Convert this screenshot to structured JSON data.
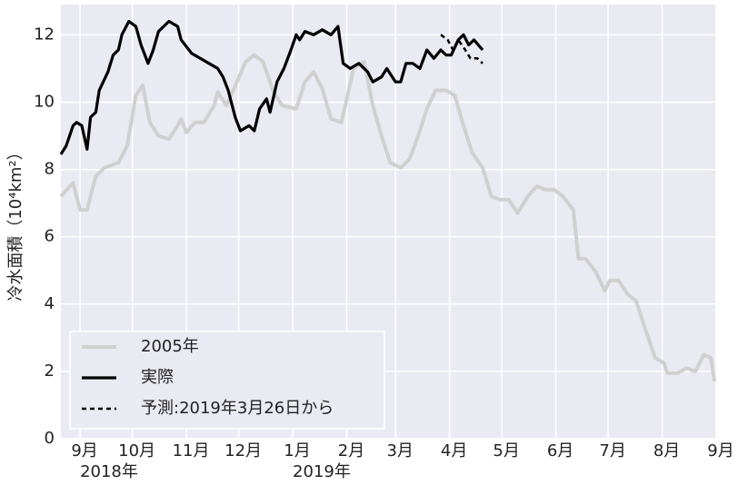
{
  "chart_data": {
    "type": "line",
    "y_label": "冷水面積（10⁴km²）",
    "xlim": [
      -11,
      365
    ],
    "xticks": [
      {
        "value": 0,
        "label": "9月"
      },
      {
        "value": 30,
        "label": "10月"
      },
      {
        "value": 61,
        "label": "11月"
      },
      {
        "value": 91,
        "label": "12月"
      },
      {
        "value": 122,
        "label": "1月"
      },
      {
        "value": 153,
        "label": "2月"
      },
      {
        "value": 181,
        "label": "3月"
      },
      {
        "value": 212,
        "label": "4月"
      },
      {
        "value": 242,
        "label": "5月"
      },
      {
        "value": 273,
        "label": "6月"
      },
      {
        "value": 303,
        "label": "7月"
      },
      {
        "value": 334,
        "label": "8月"
      },
      {
        "value": 365,
        "label": "9月"
      }
    ],
    "year_labels": [
      {
        "value": 0,
        "label": "2018年"
      },
      {
        "value": 122,
        "label": "2019年"
      }
    ],
    "ylim": [
      0,
      12.9
    ],
    "yticks": [
      0,
      2,
      4,
      6,
      8,
      10,
      12
    ],
    "grid": true,
    "legend": "lower left",
    "series": [
      {
        "name": "2005年",
        "color": "#d0d0d0",
        "style": "solid",
        "x": [
          -11,
          -4,
          0,
          4,
          9,
          14,
          22,
          27,
          32,
          36,
          40,
          45,
          51,
          56,
          58,
          61,
          66,
          71,
          77,
          79,
          84,
          90,
          95,
          100,
          105,
          111,
          116,
          124,
          129,
          134,
          139,
          144,
          150,
          157,
          163,
          168,
          173,
          178,
          184,
          189,
          194,
          199,
          204,
          210,
          215,
          220,
          225,
          231,
          236,
          241,
          246,
          251,
          257,
          262,
          267,
          272,
          277,
          283,
          286,
          290,
          296,
          301,
          304,
          309,
          314,
          319,
          324,
          330,
          335,
          337,
          343,
          348,
          353,
          358,
          362,
          364
        ],
        "values": [
          7.2,
          7.6,
          6.8,
          6.8,
          7.8,
          8.05,
          8.2,
          8.7,
          10.2,
          10.5,
          9.4,
          9.0,
          8.9,
          9.3,
          9.5,
          9.1,
          9.4,
          9.4,
          9.9,
          10.3,
          9.9,
          10.6,
          11.2,
          11.4,
          11.2,
          10.3,
          9.9,
          9.8,
          10.6,
          10.9,
          10.4,
          9.5,
          9.4,
          11.0,
          11.2,
          9.9,
          9.0,
          8.2,
          8.05,
          8.3,
          9.0,
          9.8,
          10.35,
          10.35,
          10.2,
          9.3,
          8.5,
          8.05,
          7.2,
          7.1,
          7.1,
          6.7,
          7.2,
          7.5,
          7.4,
          7.4,
          7.2,
          6.8,
          5.35,
          5.35,
          4.95,
          4.4,
          4.7,
          4.7,
          4.3,
          4.1,
          3.3,
          2.4,
          2.25,
          1.95,
          1.95,
          2.1,
          2.0,
          2.5,
          2.4,
          1.7
        ]
      },
      {
        "name": "実際",
        "color": "#000000",
        "style": "solid",
        "x": [
          -11,
          -8,
          -4,
          -2,
          1,
          4,
          6,
          9,
          11,
          16,
          19,
          22,
          24,
          28,
          32,
          35,
          39,
          42,
          45,
          51,
          56,
          58,
          64,
          69,
          74,
          79,
          82,
          85,
          89,
          92,
          97,
          100,
          103,
          107,
          109,
          113,
          117,
          121,
          124,
          126,
          129,
          134,
          139,
          144,
          148,
          151,
          155,
          160,
          165,
          168,
          173,
          176,
          181,
          184,
          187,
          191,
          195,
          199,
          203,
          207,
          210,
          213,
          217,
          220,
          223,
          226,
          231
        ],
        "values": [
          8.45,
          8.7,
          9.3,
          9.4,
          9.3,
          8.6,
          9.55,
          9.7,
          10.35,
          10.9,
          11.4,
          11.55,
          12.0,
          12.4,
          12.25,
          11.7,
          11.15,
          11.55,
          12.1,
          12.4,
          12.25,
          11.85,
          11.45,
          11.3,
          11.15,
          11.0,
          10.75,
          10.35,
          9.55,
          9.15,
          9.3,
          9.15,
          9.8,
          10.1,
          9.7,
          10.6,
          11.0,
          11.55,
          12.0,
          11.85,
          12.1,
          12.0,
          12.15,
          12.0,
          12.25,
          11.15,
          11.0,
          11.15,
          10.9,
          10.6,
          10.75,
          11.0,
          10.6,
          10.6,
          11.15,
          11.15,
          11.0,
          11.55,
          11.3,
          11.55,
          11.4,
          11.4,
          11.85,
          12.0,
          11.7,
          11.85,
          11.55
        ]
      },
      {
        "name": "予測:2019年3月26日から",
        "color": "#000000",
        "style": "dashed",
        "x": [
          207,
          211,
          214,
          217,
          221,
          224,
          228,
          231
        ],
        "values": [
          12.0,
          11.85,
          11.55,
          11.85,
          11.55,
          11.3,
          11.3,
          11.15
        ]
      }
    ]
  }
}
